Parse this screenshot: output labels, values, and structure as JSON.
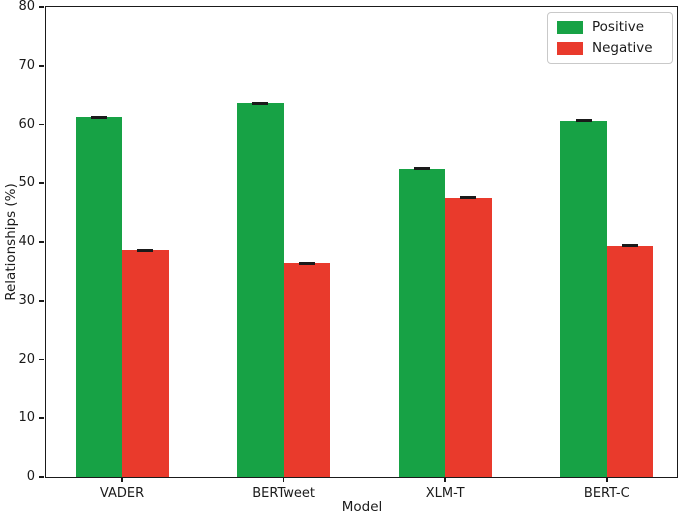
{
  "figure": {
    "background_color": "#ffffff",
    "spine_color": "#1a1a1a",
    "text_color": "#1a1a1a"
  },
  "chart_data": {
    "type": "bar",
    "title": "",
    "xlabel": "Model",
    "ylabel": "Relationships (%)",
    "categories": [
      "VADER",
      "BERTweet",
      "XLM-T",
      "BERT-C"
    ],
    "series": [
      {
        "name": "Positive",
        "color": "#17a245",
        "values": [
          61.2,
          63.6,
          52.5,
          60.6
        ],
        "errors": [
          0.2,
          0.2,
          0.2,
          0.2
        ]
      },
      {
        "name": "Negative",
        "color": "#e93a2c",
        "values": [
          38.6,
          36.4,
          47.5,
          39.4
        ],
        "errors": [
          0.2,
          0.2,
          0.2,
          0.2
        ]
      }
    ],
    "ylim": [
      0,
      80
    ],
    "yticks": [
      0,
      10,
      20,
      30,
      40,
      50,
      60,
      70,
      80
    ],
    "grid": false,
    "legend_position": "upper right",
    "error_bar_color": "#1a1a1a"
  }
}
